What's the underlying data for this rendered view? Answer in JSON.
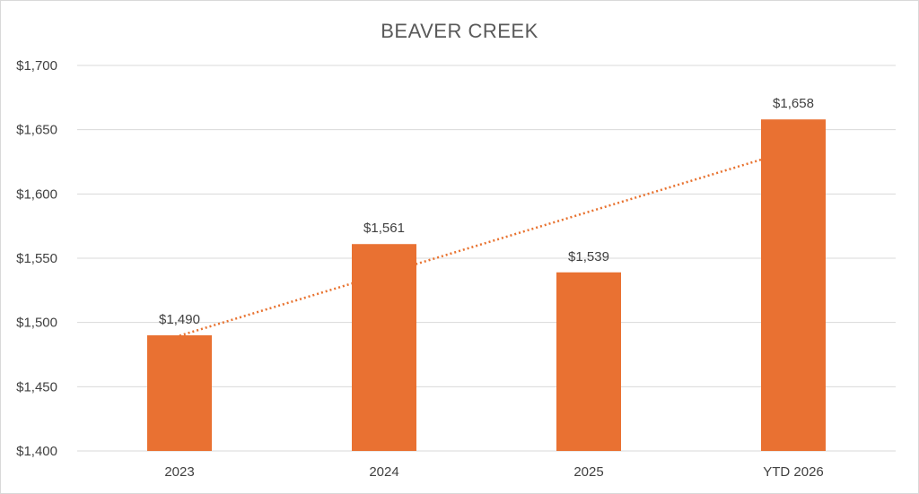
{
  "chart_data": {
    "type": "bar",
    "title": "BEAVER CREEK",
    "categories": [
      "2023",
      "2024",
      "2025",
      "YTD 2026"
    ],
    "values": [
      1490,
      1561,
      1539,
      1658
    ],
    "data_labels": [
      "$1,490",
      "$1,561",
      "$1,539",
      "$1,658"
    ],
    "ylim": [
      1400,
      1700
    ],
    "yticks": [
      1400,
      1450,
      1500,
      1550,
      1600,
      1650,
      1700
    ],
    "ytick_labels": [
      "$1,400",
      "$1,450",
      "$1,500",
      "$1,550",
      "$1,600",
      "$1,650",
      "$1,700"
    ],
    "xlabel": "",
    "ylabel": "",
    "grid": true,
    "legend": "none",
    "trendline": "linear",
    "colors": {
      "bar": "#E97132",
      "trendline": "#E97132",
      "grid": "#D9D9D9",
      "text": "#404040",
      "title": "#595959"
    }
  }
}
